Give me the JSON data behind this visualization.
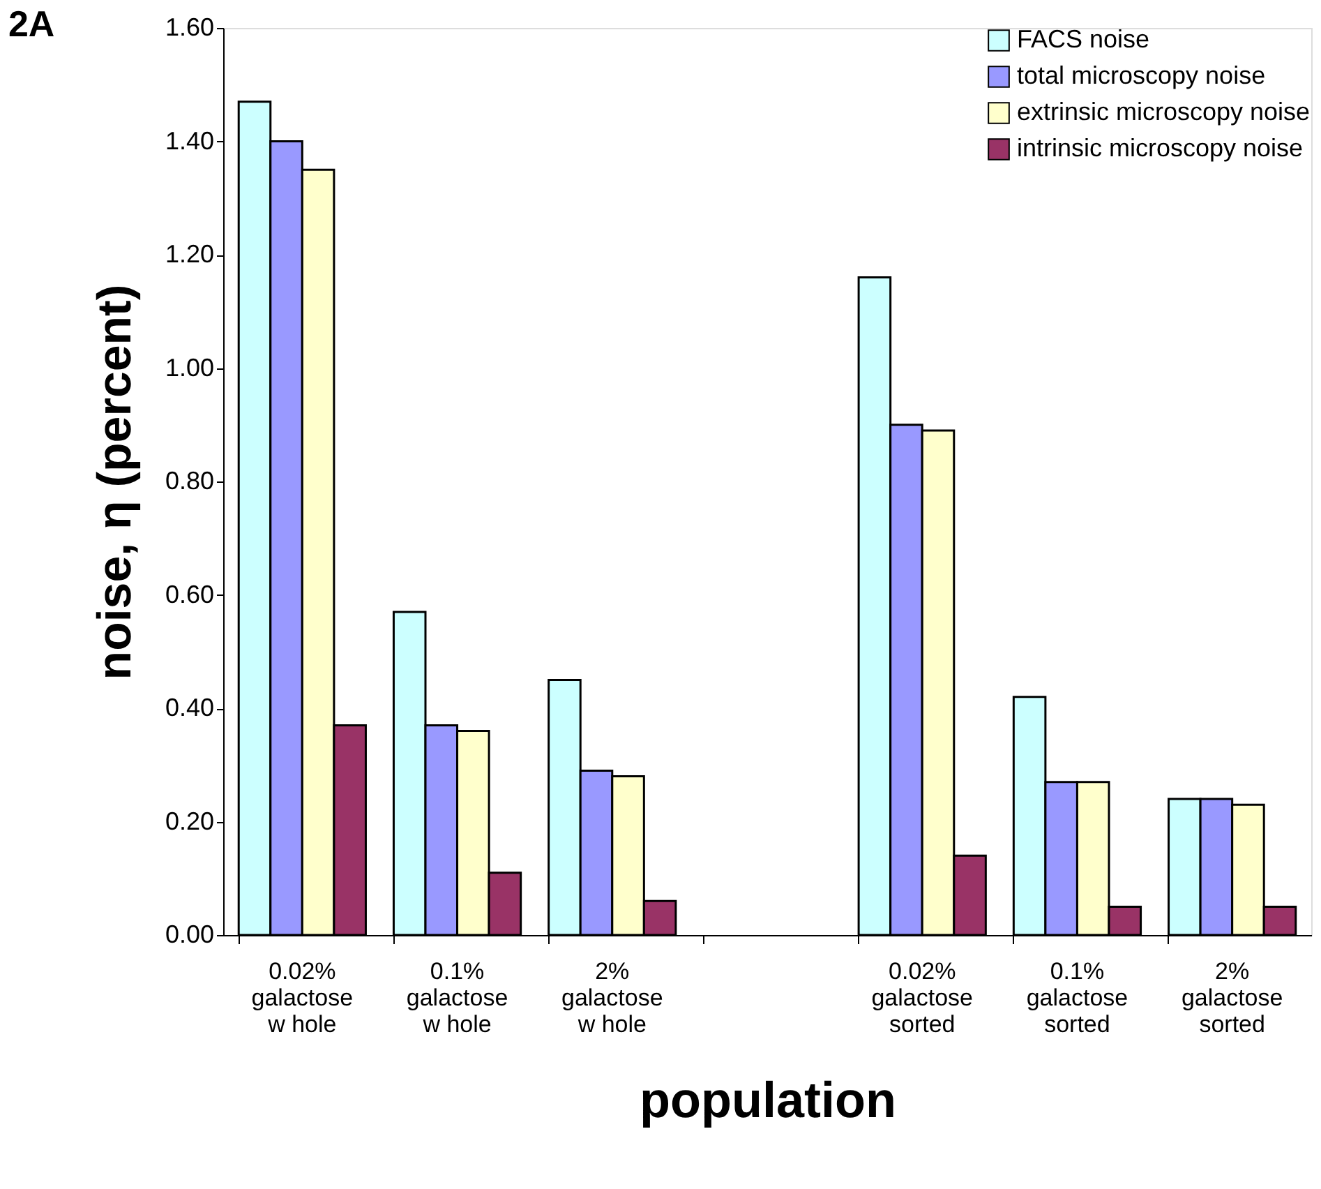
{
  "chart_data": {
    "type": "bar",
    "title": "2A",
    "xlabel": "population",
    "ylabel": "noise, η (percent)",
    "categories": [
      "0.02%\ngalactose\nw hole",
      "0.1%\ngalactose\nw hole",
      "2%\ngalactose\nw hole",
      null,
      "0.02%\ngalactose\nsorted",
      "0.1%\ngalactose\nsorted",
      "2%\ngalactose\nsorted"
    ],
    "series": [
      {
        "name": "FACS noise",
        "color": "#ccffff",
        "values": [
          1.47,
          0.57,
          0.45,
          null,
          1.16,
          0.42,
          0.24
        ]
      },
      {
        "name": "total microscopy noise",
        "color": "#9999ff",
        "values": [
          1.4,
          0.37,
          0.29,
          null,
          0.9,
          0.27,
          0.24
        ]
      },
      {
        "name": "extrinsic microscopy noise",
        "color": "#ffffcc",
        "values": [
          1.35,
          0.36,
          0.28,
          null,
          0.89,
          0.27,
          0.23
        ]
      },
      {
        "name": "intrinsic microscopy noise",
        "color": "#993366",
        "values": [
          0.37,
          0.11,
          0.06,
          null,
          0.14,
          0.05,
          0.05
        ]
      }
    ],
    "ylim": [
      0,
      1.6
    ],
    "yticks": [
      {
        "value": 0,
        "label": "0.00"
      },
      {
        "value": 0.2,
        "label": "0.20"
      },
      {
        "value": 0.4,
        "label": "0.40"
      },
      {
        "value": 0.6,
        "label": "0.60"
      },
      {
        "value": 0.8,
        "label": "0.80"
      },
      {
        "value": 1.0,
        "label": "1.00"
      },
      {
        "value": 1.2,
        "label": "1.20"
      },
      {
        "value": 1.4,
        "label": "1.40"
      },
      {
        "value": 1.6,
        "label": "1.60"
      }
    ],
    "grid": false,
    "legend": "top right"
  }
}
